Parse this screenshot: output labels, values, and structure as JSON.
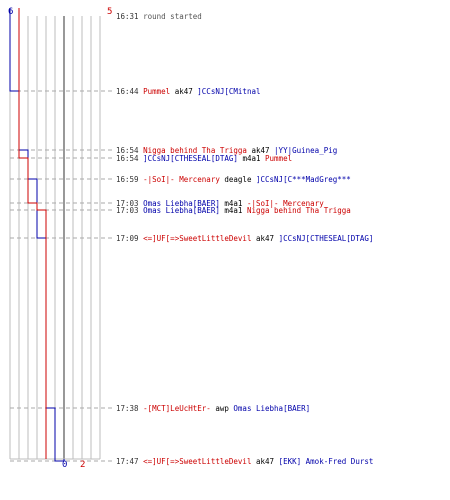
{
  "scores": {
    "team_a_start": "6",
    "team_b_start": "5",
    "team_a_end": "0",
    "team_b_end": "2"
  },
  "colors": {
    "team_a": "#0000aa",
    "team_b": "#cc0000",
    "grid": "#bdbdbd",
    "dash": "#aaaaaa",
    "zero": "#555555"
  },
  "events": [
    {
      "time": "16:31",
      "text": "round started",
      "type": "system"
    },
    {
      "time": "16:44",
      "killer": "Pummel",
      "killer_team": "red",
      "weapon": "ak47",
      "victim": "]CCsNJ[CMitnal",
      "victim_team": "blue"
    },
    {
      "time": "16:54",
      "killer": "Nigga behind Tha Trigga",
      "killer_team": "red",
      "weapon": "ak47",
      "victim": "|YY|Guinea_Pig",
      "victim_team": "blue"
    },
    {
      "time": "16:54",
      "killer": "]CCsNJ[CTHESEAL[DTAG]",
      "killer_team": "blue",
      "weapon": "m4a1",
      "victim": "Pummel",
      "victim_team": "red"
    },
    {
      "time": "16:59",
      "killer": "-|SoI|- Mercenary",
      "killer_team": "red",
      "weapon": "deagle",
      "victim": "]CCsNJ[C***MadGreg***",
      "victim_team": "blue"
    },
    {
      "time": "17:03",
      "killer": "Omas Liebha[BAER]",
      "killer_team": "blue",
      "weapon": "m4a1",
      "victim": "-|SoI|- Mercenary",
      "victim_team": "red"
    },
    {
      "time": "17:03",
      "killer": "Omas Liebha[BAER]",
      "killer_team": "blue",
      "weapon": "m4a1",
      "victim": "Nigga behind Tha Trigga",
      "victim_team": "red"
    },
    {
      "time": "17:09",
      "killer": "<=]UF[=>SweetLittleDevil",
      "killer_team": "red",
      "weapon": "ak47",
      "victim": "]CCsNJ[CTHESEAL[DTAG]",
      "victim_team": "blue"
    },
    {
      "time": "17:38",
      "killer": "-[MCT]LeUcHtEr-",
      "killer_team": "red",
      "weapon": "awp",
      "victim": "Omas Liebha[BAER]",
      "victim_team": "blue"
    },
    {
      "time": "17:47",
      "killer": "<=]UF[=>SweetLittleDevil",
      "killer_team": "red",
      "weapon": "ak47",
      "victim": "[EKK] Amok-Fred Durst",
      "victim_team": "blue"
    }
  ],
  "chart_data": {
    "type": "line",
    "x_label_times": [
      "16:31",
      "16:44",
      "16:54",
      "16:54",
      "16:59",
      "17:03",
      "17:03",
      "17:09",
      "17:38",
      "17:47"
    ],
    "ylim": [
      0,
      6
    ],
    "series": [
      {
        "color": "#0000aa",
        "steps": [
          [
            0,
            6
          ],
          [
            1,
            5
          ],
          [
            2,
            4
          ],
          [
            4,
            3
          ],
          [
            7,
            2
          ],
          [
            8,
            1
          ],
          [
            9,
            0
          ]
        ]
      },
      {
        "color": "#cc0000",
        "steps": [
          [
            0,
            5
          ],
          [
            3,
            4
          ],
          [
            5,
            3
          ],
          [
            6,
            2
          ]
        ]
      }
    ]
  }
}
